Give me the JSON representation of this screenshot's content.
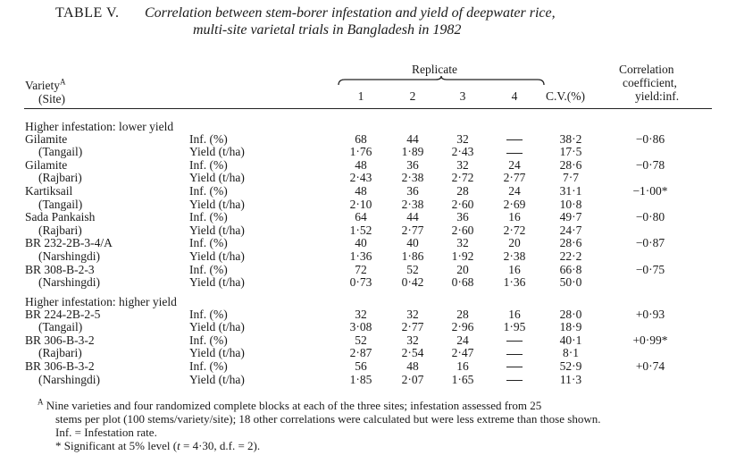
{
  "title": {
    "prefix": "TABLE V.",
    "line1": "Correlation between stem-borer infestation and yield of deepwater rice,",
    "line2": "multi-site varietal trials in Bangladesh in 1982"
  },
  "header": {
    "variety": "Variety",
    "variety_sup": "A",
    "site": "(Site)",
    "replicate": "Replicate",
    "replicates": [
      "1",
      "2",
      "3",
      "4"
    ],
    "cv": "C.V.(%)",
    "corr_line1": "Correlation",
    "corr_line2": "coefficient,",
    "corr_line3": "yield:inf."
  },
  "groups": [
    {
      "heading": "Higher infestation: lower yield",
      "varieties": [
        {
          "name": "Gilamite",
          "site": "(Tangail)",
          "inf_label": "Inf. (%)",
          "yield_label": "Yield (t/ha)",
          "inf": [
            "68",
            "44",
            "32",
            "—"
          ],
          "yield": [
            "1·76",
            "1·89",
            "2·43",
            "—"
          ],
          "cv_inf": "38·2",
          "cv_yield": "17·5",
          "corr": "−0·86"
        },
        {
          "name": "Gilamite",
          "site": "(Rajbari)",
          "inf_label": "Inf. (%)",
          "yield_label": "Yield (t/ha)",
          "inf": [
            "48",
            "36",
            "32",
            "24"
          ],
          "yield": [
            "2·43",
            "2·38",
            "2·72",
            "2·77"
          ],
          "cv_inf": "28·6",
          "cv_yield": "7·7",
          "corr": "−0·78"
        },
        {
          "name": "Kartiksail",
          "site": "(Tangail)",
          "inf_label": "Inf. (%)",
          "yield_label": "Yield (t/ha)",
          "inf": [
            "48",
            "36",
            "28",
            "24"
          ],
          "yield": [
            "2·10",
            "2·38",
            "2·60",
            "2·69"
          ],
          "cv_inf": "31·1",
          "cv_yield": "10·8",
          "corr": "−1·00*"
        },
        {
          "name": "Sada Pankaish",
          "site": "(Rajbari)",
          "inf_label": "Inf. (%)",
          "yield_label": "Yield (t/ha)",
          "inf": [
            "64",
            "44",
            "36",
            "16"
          ],
          "yield": [
            "1·52",
            "2·77",
            "2·60",
            "2·72"
          ],
          "cv_inf": "49·7",
          "cv_yield": "24·7",
          "corr": "−0·80"
        },
        {
          "name": "BR 232-2B-3-4/A",
          "site": "(Narshingdi)",
          "inf_label": "Inf. (%)",
          "yield_label": "Yield (t/ha)",
          "inf": [
            "40",
            "40",
            "32",
            "20"
          ],
          "yield": [
            "1·36",
            "1·86",
            "1·92",
            "2·38"
          ],
          "cv_inf": "28·6",
          "cv_yield": "22·2",
          "corr": "−0·87"
        },
        {
          "name": "BR 308-B-2-3",
          "site": "(Narshingdi)",
          "inf_label": "Inf. (%)",
          "yield_label": "Yield (t/ha)",
          "inf": [
            "72",
            "52",
            "20",
            "16"
          ],
          "yield": [
            "0·73",
            "0·42",
            "0·68",
            "1·36"
          ],
          "cv_inf": "66·8",
          "cv_yield": "50·0",
          "corr": "−0·75"
        }
      ]
    },
    {
      "heading": "Higher infestation: higher yield",
      "varieties": [
        {
          "name": "BR 224-2B-2-5",
          "site": "(Tangail)",
          "inf_label": "Inf. (%)",
          "yield_label": "Yield (t/ha)",
          "inf": [
            "32",
            "32",
            "28",
            "16"
          ],
          "yield": [
            "3·08",
            "2·77",
            "2·96",
            "1·95"
          ],
          "cv_inf": "28·0",
          "cv_yield": "18·9",
          "corr": "+0·93"
        },
        {
          "name": "BR 306-B-3-2",
          "site": "(Rajbari)",
          "inf_label": "Inf. (%)",
          "yield_label": "Yield (t/ha)",
          "inf": [
            "52",
            "32",
            "24",
            "—"
          ],
          "yield": [
            "2·87",
            "2·54",
            "2·47",
            "—"
          ],
          "cv_inf": "40·1",
          "cv_yield": "8·1",
          "corr": "+0·99*"
        },
        {
          "name": "BR 306-B-3-2",
          "site": "(Narshingdi)",
          "inf_label": "Inf. (%)",
          "yield_label": "Yield (t/ha)",
          "inf": [
            "56",
            "48",
            "16",
            "—"
          ],
          "yield": [
            "1·85",
            "2·07",
            "1·65",
            "—"
          ],
          "cv_inf": "52·9",
          "cv_yield": "11·3",
          "corr": "+0·74"
        }
      ]
    }
  ],
  "footnotes": {
    "a_marker": "A",
    "a_line1": "Nine varieties and four randomized complete blocks at each of the three sites; infestation assessed from 25",
    "a_line2": "stems per plot (100 stems/variety/site); 18 other correlations were calculated but were less extreme than those shown.",
    "inf_def": "Inf. = Infestation rate.",
    "sig_prefix": "* Significant at 5% level (",
    "sig_t": "t",
    "sig_suffix": " = 4·30, d.f. = 2)."
  }
}
